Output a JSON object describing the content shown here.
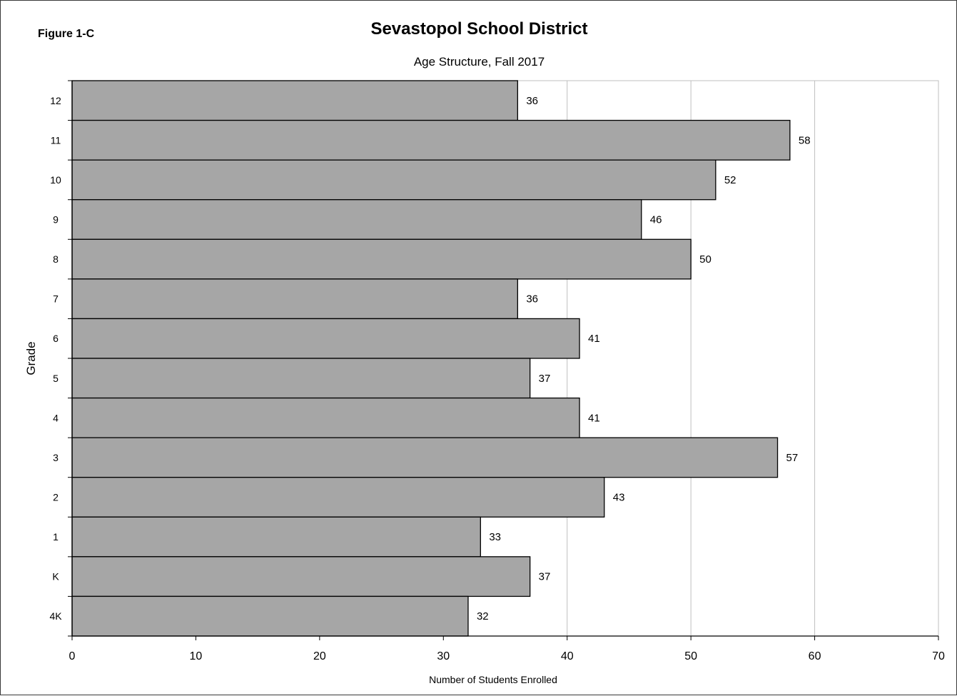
{
  "figure_label": "Figure 1-C",
  "chart_data": {
    "type": "bar",
    "orientation": "horizontal",
    "title": "Sevastopol School District",
    "subtitle": "Age Structure,  Fall 2017",
    "xlabel": "Number of Students Enrolled",
    "ylabel": "Grade",
    "categories": [
      "12",
      "11",
      "10",
      "9",
      "8",
      "7",
      "6",
      "5",
      "4",
      "3",
      "2",
      "1",
      "K",
      "4K"
    ],
    "values": [
      36,
      58,
      52,
      46,
      50,
      36,
      41,
      37,
      41,
      57,
      43,
      33,
      37,
      32
    ],
    "data_labels": [
      "36",
      "58",
      "52",
      "46",
      "50",
      "36",
      "41",
      "37",
      "41",
      "57",
      "43",
      "33",
      "37",
      "32"
    ],
    "xlim": [
      0,
      70
    ],
    "xticks": [
      0,
      10,
      20,
      30,
      40,
      50,
      60,
      70
    ],
    "xtick_labels": [
      "0",
      "10",
      "20",
      "30",
      "40",
      "50",
      "60",
      "70"
    ],
    "grid": "vertical",
    "legend": "none",
    "colors": {
      "bar_fill": "#a6a6a6",
      "bar_stroke": "#000000",
      "gridline": "#bfbfbf",
      "plot_border": "#bfbfbf",
      "axis": "#000000"
    }
  }
}
